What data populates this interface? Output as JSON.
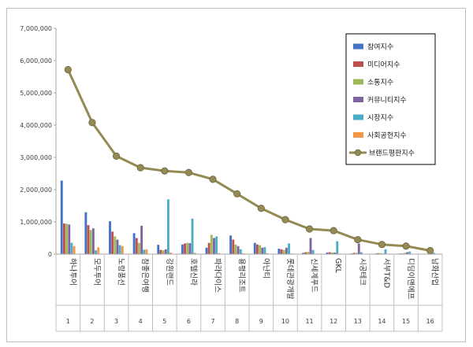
{
  "chart_data": {
    "type": "bar",
    "ylim": [
      0,
      7000000
    ],
    "yticks": [
      "0",
      "1,000,000",
      "2,000,000",
      "3,000,000",
      "4,000,000",
      "5,000,000",
      "6,000,000",
      "7,000,000"
    ],
    "categories": [
      "하나투어",
      "모두투어",
      "노랑풍선",
      "참좋은여행",
      "강원랜드",
      "호텔신라",
      "파라다이스",
      "용평리조트",
      "아난티",
      "롯데관광개발",
      "신세계푸드",
      "GKL",
      "시공테크",
      "서부T&D",
      "디딤이앤에프",
      "남화산업"
    ],
    "numbers": [
      "1",
      "2",
      "3",
      "4",
      "5",
      "6",
      "7",
      "8",
      "9",
      "10",
      "11",
      "12",
      "13",
      "14",
      "15",
      "16"
    ],
    "legend_position": "top-right",
    "series": [
      {
        "name": "참여지수",
        "color": "#4472c4",
        "values": [
          2280000,
          1300000,
          1020000,
          650000,
          290000,
          300000,
          200000,
          580000,
          350000,
          170000,
          40000,
          50000,
          20000,
          20000,
          20000,
          10000
        ]
      },
      {
        "name": "미디어지수",
        "color": "#c0504d",
        "values": [
          950000,
          900000,
          700000,
          500000,
          130000,
          330000,
          350000,
          450000,
          300000,
          150000,
          60000,
          60000,
          40000,
          30000,
          20000,
          10000
        ]
      },
      {
        "name": "소통지수",
        "color": "#9bbb59",
        "values": [
          940000,
          750000,
          550000,
          350000,
          120000,
          350000,
          600000,
          300000,
          280000,
          130000,
          70000,
          50000,
          40000,
          30000,
          40000,
          20000
        ]
      },
      {
        "name": "커뮤니티지수",
        "color": "#8064a2",
        "values": [
          920000,
          800000,
          450000,
          880000,
          150000,
          340000,
          500000,
          250000,
          200000,
          200000,
          500000,
          50000,
          330000,
          20000,
          60000,
          20000
        ]
      },
      {
        "name": "시장지수",
        "color": "#4bacc6",
        "values": [
          350000,
          120000,
          280000,
          140000,
          1700000,
          1100000,
          550000,
          150000,
          220000,
          330000,
          130000,
          400000,
          60000,
          150000,
          80000,
          40000
        ]
      },
      {
        "name": "사회공헌지수",
        "color": "#f79646",
        "values": [
          250000,
          210000,
          250000,
          150000,
          50000,
          40000,
          30000,
          30000,
          30000,
          20000,
          10000,
          10000,
          10000,
          10000,
          10000,
          10000
        ]
      }
    ],
    "line_series": {
      "name": "브랜드평판지수",
      "color": "#948a54",
      "values": [
        5720000,
        4080000,
        3040000,
        2680000,
        2580000,
        2530000,
        2320000,
        1870000,
        1420000,
        1070000,
        780000,
        730000,
        450000,
        300000,
        250000,
        110000
      ]
    }
  }
}
